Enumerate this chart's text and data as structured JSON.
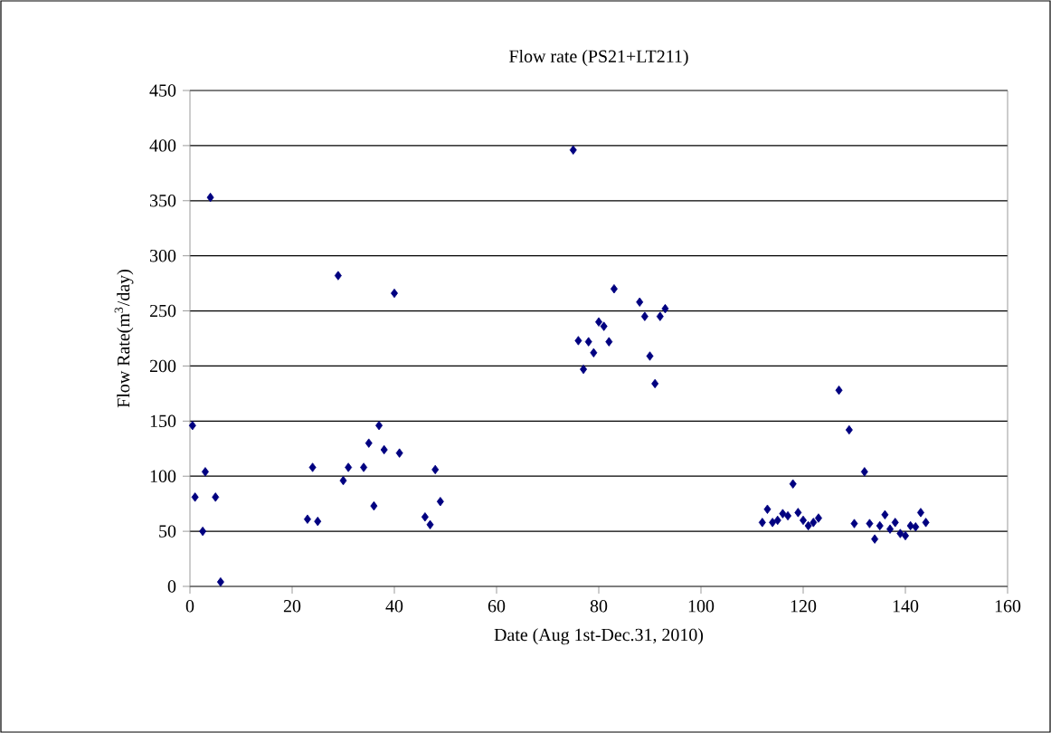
{
  "chart_data": {
    "type": "scatter",
    "title": "Flow rate (PS21+LT211)",
    "xlabel": "Date (Aug 1st-Dec.31, 2010)",
    "ylabel": "Flow Rate(m$^{3}$/day)",
    "marker": "diamond",
    "grid": "y",
    "xlim": [
      0,
      160
    ],
    "xticks": [
      0,
      20,
      40,
      60,
      80,
      100,
      120,
      140,
      160
    ],
    "ylim": [
      0,
      450
    ],
    "yticks": [
      0,
      50,
      100,
      150,
      200,
      250,
      300,
      350,
      400,
      450
    ],
    "series": [
      {
        "color": "#000080",
        "x": [
          0.5,
          1,
          2.5,
          3,
          4,
          5,
          6,
          23,
          24,
          25,
          29,
          30,
          31,
          34,
          35,
          36,
          37,
          38,
          40,
          41,
          46,
          47,
          48,
          49,
          75,
          76,
          77,
          78,
          79,
          80,
          81,
          82,
          83,
          88,
          89,
          90,
          91,
          92,
          93,
          112,
          113,
          114,
          115,
          116,
          117,
          118,
          119,
          120,
          121,
          122,
          123,
          127,
          129,
          130,
          132,
          133,
          134,
          135,
          136,
          137,
          138,
          139,
          140,
          141,
          142,
          143,
          144
        ],
        "values": [
          146,
          81,
          50,
          104,
          353,
          81,
          4,
          61,
          108,
          59,
          282,
          96,
          108,
          108,
          130,
          73,
          146,
          124,
          266,
          121,
          63,
          56,
          106,
          77,
          396,
          223,
          197,
          222,
          212,
          240,
          236,
          222,
          270,
          258,
          245,
          209,
          184,
          245,
          252,
          58,
          70,
          58,
          60,
          66,
          64,
          93,
          67,
          60,
          55,
          58,
          62,
          178,
          142,
          57,
          104,
          57,
          43,
          55,
          65,
          52,
          58,
          48,
          46,
          55,
          54,
          67,
          58
        ]
      }
    ]
  }
}
